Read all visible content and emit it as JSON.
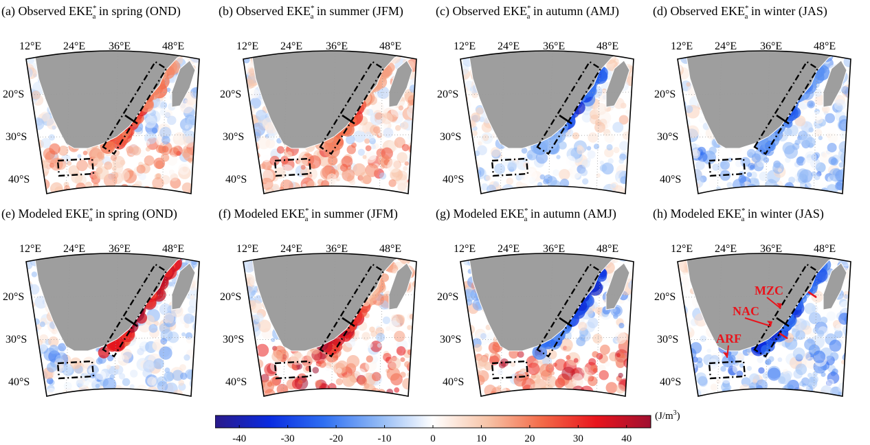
{
  "panels": [
    {
      "id": "a",
      "prefix": "(a) Observed EKE",
      "sup": "*",
      "sub": "a",
      "suffix": " in spring (OND)",
      "model": false,
      "season": "spring",
      "anom": [
        0.45,
        0.7,
        0.6,
        0.55,
        -0.4,
        0.1
      ]
    },
    {
      "id": "b",
      "prefix": "(b) Observed EKE",
      "sup": "*",
      "sub": "a",
      "suffix": " in summer (JFM)",
      "model": false,
      "season": "summer",
      "anom": [
        0.35,
        0.6,
        0.45,
        0.4,
        0.5,
        0.3
      ]
    },
    {
      "id": "c",
      "prefix": "(c) Observed EKE",
      "sup": "*",
      "sub": "a",
      "suffix": " in autumn (AMJ)",
      "model": false,
      "season": "autumn",
      "anom": [
        -0.55,
        -0.7,
        -0.3,
        -0.1,
        0.35,
        -0.1
      ]
    },
    {
      "id": "d",
      "prefix": "(d) Observed EKE",
      "sup": "*",
      "sub": "a",
      "suffix": " in winter (JAS)",
      "model": false,
      "season": "winter",
      "anom": [
        -0.4,
        -0.5,
        -0.35,
        -0.3,
        -0.45,
        -0.2
      ]
    },
    {
      "id": "e",
      "prefix": "(e) Modeled EKE",
      "sup": "*",
      "sub": "a",
      "suffix": " in spring (OND)",
      "model": true,
      "season": "spring",
      "anom": [
        0.8,
        0.9,
        0.7,
        -0.4,
        -0.3,
        0.15
      ]
    },
    {
      "id": "f",
      "prefix": "(f) Modeled EKE",
      "sup": "*",
      "sub": "a",
      "suffix": " in summer (JFM)",
      "model": true,
      "season": "summer",
      "anom": [
        0.3,
        0.7,
        0.85,
        0.9,
        0.5,
        0.2
      ]
    },
    {
      "id": "g",
      "prefix": "(g) Modeled EKE",
      "sup": "*",
      "sub": "a",
      "suffix": " in autumn (AMJ)",
      "model": true,
      "season": "autumn",
      "anom": [
        -0.7,
        -0.7,
        -0.5,
        0.6,
        -0.4,
        0.5
      ]
    },
    {
      "id": "h",
      "prefix": "(h) Modeled EKE",
      "sup": "*",
      "sub": "a",
      "suffix": " in winter (JAS)",
      "model": true,
      "season": "winter",
      "anom": [
        -0.5,
        -0.7,
        -0.7,
        -0.5,
        -0.6,
        -0.1
      ]
    }
  ],
  "lon_labels": [
    "12°E",
    "24°E",
    "36°E",
    "48°E"
  ],
  "lat_labels": [
    "20°S",
    "30°S",
    "40°S"
  ],
  "annotations": [
    {
      "panel": "h",
      "text": "MZC",
      "color": "#e8141c"
    },
    {
      "panel": "h",
      "text": "NAC",
      "color": "#e8141c"
    },
    {
      "panel": "h",
      "text": "ARF",
      "color": "#e8141c"
    }
  ],
  "colorbar": {
    "unit_base": "(J/m",
    "unit_sup": "3",
    "unit_close": ")",
    "min": -45,
    "max": 45,
    "ticks": [
      "-40",
      "-30",
      "-20",
      "-10",
      "0",
      "10",
      "20",
      "30",
      "40"
    ],
    "tick_values": [
      -40,
      -30,
      -20,
      -10,
      0,
      10,
      20,
      30,
      40
    ],
    "colors": [
      "#2a1a8a",
      "#0a2be0",
      "#2f6ff2",
      "#8fb8f5",
      "#ffffff",
      "#f7c4a8",
      "#f36a48",
      "#e8141c",
      "#a01030"
    ]
  },
  "land_color": "#9e9e9e"
}
